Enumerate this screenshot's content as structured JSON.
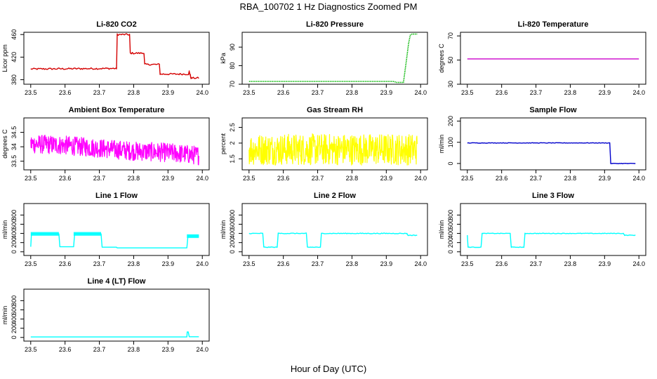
{
  "page": {
    "title": "RBA_100702  1 Hz Diagnostics Zoomed PM",
    "xlabel": "Hour of Day (UTC)"
  },
  "chart_data": [
    {
      "type": "line",
      "title": "Li-820 CO2",
      "ylabel": "Licor ppm",
      "color": "#d40000",
      "xlim": [
        23.48,
        24.02
      ],
      "ylim": [
        372,
        464
      ],
      "yticks": [
        380,
        420,
        460
      ],
      "xticks": [
        23.5,
        23.6,
        23.7,
        23.8,
        23.9,
        24.0
      ],
      "style": "steps",
      "noise": 1.5,
      "x": [
        23.5,
        23.75,
        23.752,
        23.788,
        23.79,
        23.83,
        23.832,
        23.875,
        23.877,
        23.96,
        23.962,
        23.965,
        23.967,
        23.99
      ],
      "y": [
        399,
        400,
        460,
        460,
        427,
        427,
        407,
        407,
        390,
        390,
        395,
        388,
        383,
        383
      ]
    },
    {
      "type": "line",
      "title": "Li-820 Pressure",
      "ylabel": "kPa",
      "color": "#00b400",
      "xlim": [
        23.48,
        24.02
      ],
      "ylim": [
        70,
        98
      ],
      "yticks": [
        70,
        80,
        90
      ],
      "xticks": [
        23.5,
        23.6,
        23.7,
        23.8,
        23.9,
        24.0
      ],
      "style": "dotted",
      "noise": 0,
      "x": [
        23.5,
        23.92,
        23.93,
        23.95,
        23.958,
        23.965,
        23.97,
        23.975,
        23.99
      ],
      "y": [
        71.5,
        71.5,
        71.0,
        71.0,
        82,
        92,
        96.5,
        97,
        97
      ]
    },
    {
      "type": "line",
      "title": "Li-820 Temperature",
      "ylabel": "degrees C",
      "color": "#cc00cc",
      "xlim": [
        23.48,
        24.02
      ],
      "ylim": [
        30,
        73
      ],
      "yticks": [
        30,
        50,
        70
      ],
      "xticks": [
        23.5,
        23.6,
        23.7,
        23.8,
        23.9,
        24.0
      ],
      "style": "line",
      "noise": 0,
      "x": [
        23.5,
        24.0
      ],
      "y": [
        51,
        51
      ]
    },
    {
      "type": "line",
      "title": "Ambient Box Temperature",
      "ylabel": "degrees C",
      "color": "#ff00ff",
      "xlim": [
        23.48,
        24.02
      ],
      "ylim": [
        33.2,
        35.0
      ],
      "yticks": [
        33.5,
        34.0,
        34.5
      ],
      "xticks": [
        23.5,
        23.6,
        23.7,
        23.8,
        23.9,
        24.0
      ],
      "style": "noisy",
      "noise": 0.33,
      "x": [
        23.5,
        23.6,
        23.7,
        23.8,
        23.9,
        23.99
      ],
      "y": [
        34.1,
        34.05,
        33.95,
        33.85,
        33.8,
        33.7
      ]
    },
    {
      "type": "line",
      "title": "Gas Stream RH",
      "ylabel": "percent",
      "color": "#ffff00",
      "xlim": [
        23.48,
        24.02
      ],
      "ylim": [
        1.15,
        2.8
      ],
      "yticks": [
        1.5,
        2.0,
        2.5
      ],
      "xticks": [
        23.5,
        23.6,
        23.7,
        23.8,
        23.9,
        24.0
      ],
      "style": "noisy",
      "noise": 0.5,
      "x": [
        23.5,
        23.99
      ],
      "y": [
        1.8,
        1.8
      ]
    },
    {
      "type": "line",
      "title": "Sample Flow",
      "ylabel": "ml/min",
      "color": "#0000cc",
      "xlim": [
        23.48,
        24.02
      ],
      "ylim": [
        -30,
        215
      ],
      "yticks": [
        0,
        100,
        200
      ],
      "xticks": [
        23.5,
        23.6,
        23.7,
        23.8,
        23.9,
        24.0
      ],
      "style": "steps",
      "noise": 1.2,
      "x": [
        23.5,
        23.915,
        23.918,
        23.99
      ],
      "y": [
        97,
        97,
        0,
        0
      ]
    },
    {
      "type": "line",
      "title": "Line 1 Flow",
      "ylabel": "ml/min",
      "color": "#00ffff",
      "xlim": [
        23.48,
        24.02
      ],
      "ylim": [
        -80,
        1050
      ],
      "yticks": [
        0,
        200,
        400,
        600,
        800
      ],
      "xticks": [
        23.5,
        23.6,
        23.7,
        23.8,
        23.9,
        24.0
      ],
      "style": "steps",
      "noise": 0,
      "bands": [
        [
          23.5,
          23.582,
          350,
          430
        ],
        [
          23.625,
          23.705,
          350,
          430
        ],
        [
          23.955,
          23.99,
          300,
          380
        ]
      ],
      "x": [
        23.5,
        23.502,
        23.582,
        23.585,
        23.625,
        23.628,
        23.705,
        23.708,
        23.75,
        23.752,
        23.955,
        23.958,
        23.99
      ],
      "y": [
        110,
        390,
        390,
        110,
        110,
        390,
        390,
        100,
        100,
        85,
        85,
        340,
        340
      ]
    },
    {
      "type": "line",
      "title": "Line 2 Flow",
      "ylabel": "ml/min",
      "color": "#00ffff",
      "xlim": [
        23.48,
        24.02
      ],
      "ylim": [
        -80,
        1050
      ],
      "yticks": [
        0,
        200,
        400,
        600,
        800
      ],
      "xticks": [
        23.5,
        23.6,
        23.7,
        23.8,
        23.9,
        24.0
      ],
      "style": "steps",
      "noise": 8,
      "x": [
        23.5,
        23.54,
        23.543,
        23.582,
        23.585,
        23.667,
        23.67,
        23.708,
        23.711,
        23.96,
        23.963,
        23.99
      ],
      "y": [
        400,
        400,
        100,
        100,
        400,
        400,
        100,
        100,
        400,
        400,
        360,
        360
      ]
    },
    {
      "type": "line",
      "title": "Line 3 Flow",
      "ylabel": "ml/min",
      "color": "#00ffff",
      "xlim": [
        23.48,
        24.02
      ],
      "ylim": [
        -80,
        1050
      ],
      "yticks": [
        0,
        200,
        400,
        600,
        800
      ],
      "xticks": [
        23.5,
        23.6,
        23.7,
        23.8,
        23.9,
        24.0
      ],
      "style": "steps",
      "noise": 6,
      "x": [
        23.5,
        23.502,
        23.54,
        23.543,
        23.625,
        23.628,
        23.665,
        23.668,
        23.955,
        23.958,
        23.99
      ],
      "y": [
        360,
        100,
        100,
        400,
        400,
        100,
        100,
        400,
        400,
        360,
        360
      ]
    },
    {
      "type": "line",
      "title": "Line 4 (LT) Flow",
      "ylabel": "ml/min",
      "color": "#00ffff",
      "xlim": [
        23.48,
        24.02
      ],
      "ylim": [
        -80,
        1050
      ],
      "yticks": [
        0,
        200,
        400,
        600,
        800
      ],
      "xticks": [
        23.5,
        23.6,
        23.7,
        23.8,
        23.9,
        24.0
      ],
      "style": "steps",
      "noise": 0,
      "x": [
        23.5,
        23.955,
        23.956,
        23.959,
        23.962,
        23.99
      ],
      "y": [
        10,
        10,
        120,
        120,
        15,
        15
      ]
    }
  ]
}
